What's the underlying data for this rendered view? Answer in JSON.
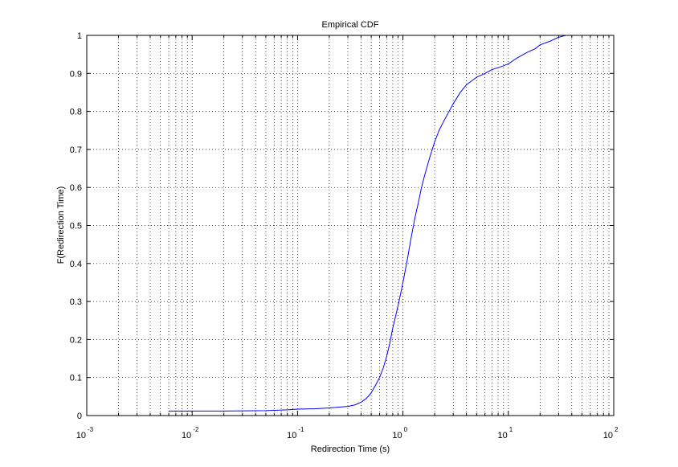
{
  "chart_data": {
    "type": "line",
    "title": "Empirical CDF",
    "xlabel": "Redirection Time (s)",
    "ylabel": "F(Redirection Time)",
    "xscale": "log",
    "xlim": [
      0.001,
      100
    ],
    "ylim": [
      0,
      1
    ],
    "grid": "dotted",
    "x_ticks": [
      {
        "base": "10",
        "exp": "-3"
      },
      {
        "base": "10",
        "exp": "-2"
      },
      {
        "base": "10",
        "exp": "-1"
      },
      {
        "base": "10",
        "exp": "0"
      },
      {
        "base": "10",
        "exp": "1"
      },
      {
        "base": "10",
        "exp": "2"
      }
    ],
    "y_ticks": [
      "0",
      "0.1",
      "0.2",
      "0.3",
      "0.4",
      "0.5",
      "0.6",
      "0.7",
      "0.8",
      "0.9",
      "1"
    ],
    "series": [
      {
        "color": "#0000ff",
        "x": [
          0.006,
          0.01,
          0.02,
          0.05,
          0.08,
          0.1,
          0.15,
          0.2,
          0.3,
          0.35,
          0.4,
          0.45,
          0.5,
          0.55,
          0.6,
          0.65,
          0.7,
          0.75,
          0.8,
          0.85,
          0.9,
          0.95,
          1.0,
          1.1,
          1.2,
          1.3,
          1.4,
          1.5,
          1.6,
          1.8,
          2.0,
          2.2,
          2.5,
          3.0,
          3.5,
          4.0,
          5.0,
          6.0,
          7.0,
          8.0,
          9.0,
          10,
          12,
          15,
          18,
          20,
          25,
          30,
          35,
          40
        ],
        "y": [
          0.012,
          0.012,
          0.012,
          0.013,
          0.015,
          0.017,
          0.018,
          0.02,
          0.024,
          0.028,
          0.035,
          0.045,
          0.06,
          0.08,
          0.1,
          0.125,
          0.155,
          0.19,
          0.23,
          0.26,
          0.29,
          0.32,
          0.35,
          0.41,
          0.47,
          0.52,
          0.56,
          0.6,
          0.63,
          0.68,
          0.72,
          0.75,
          0.78,
          0.82,
          0.85,
          0.87,
          0.89,
          0.9,
          0.91,
          0.915,
          0.92,
          0.925,
          0.94,
          0.955,
          0.965,
          0.975,
          0.985,
          0.995,
          1.0,
          1.0
        ]
      }
    ]
  }
}
